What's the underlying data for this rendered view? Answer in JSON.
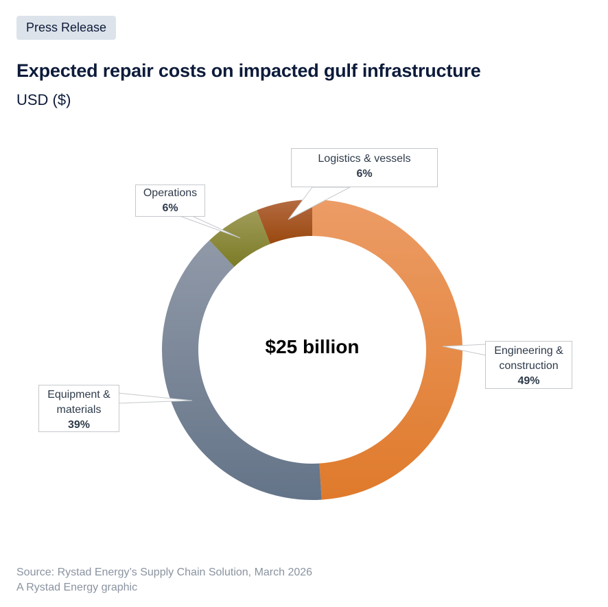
{
  "badge": "Press Release",
  "header": {
    "title": "Expected repair costs on impacted gulf infrastructure",
    "subtitle": "USD ($)"
  },
  "chart_data": {
    "type": "pie",
    "donut": true,
    "center_label": "$25 billion",
    "categories": [
      "Engineering & construction",
      "Equipment & materials",
      "Operations",
      "Logistics & vessels"
    ],
    "values": [
      49,
      39,
      6,
      6
    ],
    "labels": [
      "49%",
      "39%",
      "6%",
      "6%"
    ],
    "colors": [
      "#e8873f",
      "#7a879a",
      "#8a8a3a",
      "#a3561f"
    ]
  },
  "footer": {
    "source": "Source: Rystad Energy’s Supply Chain Solution, March 2026",
    "credit": "A Rystad Energy graphic"
  }
}
